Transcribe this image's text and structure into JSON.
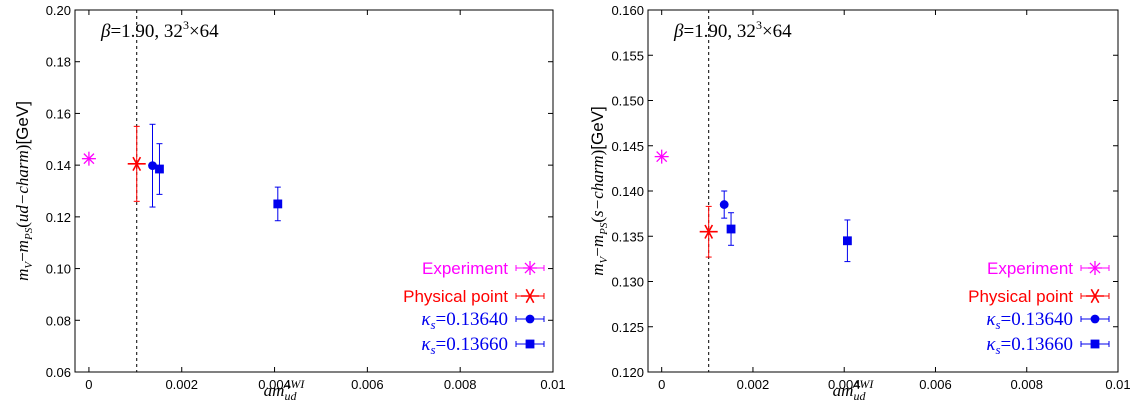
{
  "chart_data": [
    {
      "type": "scatter",
      "annotation": "β=1.90, 32³×64",
      "xlabel": "am_ud^AWI",
      "ylabel": "m_V−m_PS(ud−charm)[GeV]",
      "xlim": [
        -0.0003,
        0.01
      ],
      "ylim": [
        0.06,
        0.2
      ],
      "xticks": [
        "0",
        "0.002",
        "0.004",
        "0.006",
        "0.008",
        "0.01"
      ],
      "xtick_values": [
        0,
        0.002,
        0.004,
        0.006,
        0.008,
        0.01
      ],
      "yticks": [
        "0.06",
        "0.08",
        "0.10",
        "0.12",
        "0.14",
        "0.16",
        "0.18",
        "0.20"
      ],
      "ytick_values": [
        0.06,
        0.08,
        0.1,
        0.12,
        0.14,
        0.16,
        0.18,
        0.2
      ],
      "vline_x": 0.00103,
      "legend_position": "bottom-right",
      "series": [
        {
          "name": "Experiment",
          "marker": "star",
          "color": "#ff00ff",
          "points": [
            {
              "x": 0.0,
              "y": 0.1425,
              "err": 0
            }
          ]
        },
        {
          "name": "Physical point",
          "marker": "asterisk",
          "color": "#ff0000",
          "points": [
            {
              "x": 0.00103,
              "y": 0.1405,
              "err": 0.0145
            }
          ]
        },
        {
          "name": "κs=0.13640",
          "marker": "circle",
          "color": "#0000ee",
          "points": [
            {
              "x": 0.00137,
              "y": 0.1398,
              "err": 0.016
            }
          ]
        },
        {
          "name": "κs=0.13660",
          "marker": "square",
          "color": "#0000ee",
          "points": [
            {
              "x": 0.00152,
              "y": 0.1385,
              "err": 0.0098
            },
            {
              "x": 0.00407,
              "y": 0.125,
              "err": 0.0065
            }
          ]
        }
      ]
    },
    {
      "type": "scatter",
      "annotation": "β=1.90, 32³×64",
      "xlabel": "am_ud^AWI",
      "ylabel": "m_V−m_PS(s−charm)[GeV]",
      "xlim": [
        -0.0003,
        0.01
      ],
      "ylim": [
        0.12,
        0.16
      ],
      "xticks": [
        "0",
        "0.002",
        "0.004",
        "0.006",
        "0.008",
        "0.01"
      ],
      "xtick_values": [
        0,
        0.002,
        0.004,
        0.006,
        0.008,
        0.01
      ],
      "yticks": [
        "0.120",
        "0.125",
        "0.130",
        "0.135",
        "0.140",
        "0.145",
        "0.150",
        "0.155",
        "0.160"
      ],
      "ytick_values": [
        0.12,
        0.125,
        0.13,
        0.135,
        0.14,
        0.145,
        0.15,
        0.155,
        0.16
      ],
      "vline_x": 0.00103,
      "legend_position": "bottom-right",
      "series": [
        {
          "name": "Experiment",
          "marker": "star",
          "color": "#ff00ff",
          "points": [
            {
              "x": 0.0,
              "y": 0.1438,
              "err": 0
            }
          ]
        },
        {
          "name": "Physical point",
          "marker": "asterisk",
          "color": "#ff0000",
          "points": [
            {
              "x": 0.00103,
              "y": 0.1355,
              "err": 0.0028
            }
          ]
        },
        {
          "name": "κs=0.13640",
          "marker": "circle",
          "color": "#0000ee",
          "points": [
            {
              "x": 0.00137,
              "y": 0.1385,
              "err": 0.0015
            }
          ]
        },
        {
          "name": "κs=0.13660",
          "marker": "square",
          "color": "#0000ee",
          "points": [
            {
              "x": 0.00152,
              "y": 0.1358,
              "err": 0.0018
            },
            {
              "x": 0.00407,
              "y": 0.1345,
              "err": 0.0023
            }
          ]
        }
      ]
    }
  ]
}
